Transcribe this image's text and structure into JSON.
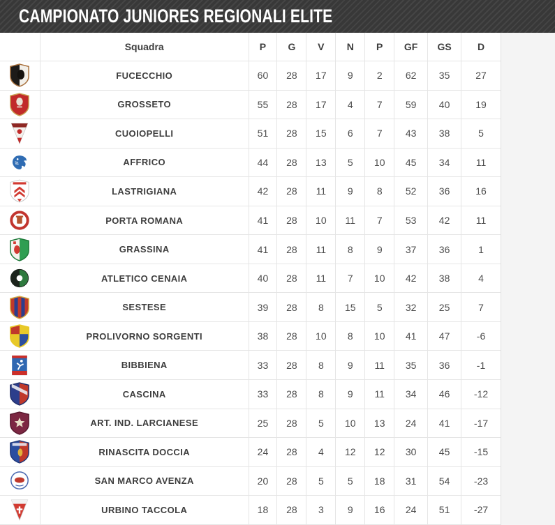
{
  "header": {
    "title": "CAMPIONATO JUNIORES REGIONALI ELITE"
  },
  "colors": {
    "title_bar_bg": "#3b3b3b",
    "title_text": "#ffffff",
    "page_bg": "#f4f4f4",
    "table_bg": "#ffffff",
    "row_border": "#e5e5e5",
    "header_text": "#3d3d3d",
    "cell_text": "#4c4c4c"
  },
  "standings": {
    "columns": [
      "",
      "Squadra",
      "P",
      "G",
      "V",
      "N",
      "P",
      "GF",
      "GS",
      "D"
    ],
    "column_names": [
      "logo",
      "team",
      "points",
      "played",
      "won",
      "drawn",
      "lost",
      "goals-for",
      "goals-against",
      "difference"
    ],
    "rows": [
      {
        "team": "FUCECCHIO",
        "stats": [
          60,
          28,
          17,
          9,
          2,
          62,
          35,
          27
        ],
        "logo": {
          "icon": "fucecchio-crest-icon",
          "shape": "shield-split",
          "colors": [
            "#1d1b19",
            "#f2efe9",
            "#a8703c"
          ],
          "detail": "lion"
        }
      },
      {
        "team": "GROSSETO",
        "stats": [
          55,
          28,
          17,
          4,
          7,
          59,
          40,
          19
        ],
        "logo": {
          "icon": "grosseto-crest-icon",
          "shape": "shield",
          "colors": [
            "#c12b2a",
            "#e9e3d4",
            "#caa353"
          ],
          "detail": "griffin"
        }
      },
      {
        "team": "CUOIOPELLI",
        "stats": [
          51,
          28,
          15,
          6,
          7,
          43,
          38,
          5
        ],
        "logo": {
          "icon": "cuoiopelli-crest-icon",
          "shape": "pennant",
          "colors": [
            "#8e2723",
            "#f4f0ec",
            "#c12b2a"
          ],
          "detail": "mark"
        }
      },
      {
        "team": "AFFRICO",
        "stats": [
          44,
          28,
          13,
          5,
          10,
          45,
          34,
          11
        ],
        "logo": {
          "icon": "affrico-crest-icon",
          "shape": "bird",
          "colors": [
            "#2f6cb3",
            "#ffffff",
            "#2f6cb3"
          ]
        }
      },
      {
        "team": "LASTRIGIANA",
        "stats": [
          42,
          28,
          11,
          9,
          8,
          52,
          36,
          16
        ],
        "logo": {
          "icon": "lastrigiana-crest-icon",
          "shape": "chevron-shield",
          "colors": [
            "#d23a31",
            "#ffffff",
            "#c9c9c9"
          ]
        }
      },
      {
        "team": "PORTA ROMANA",
        "stats": [
          41,
          28,
          10,
          11,
          7,
          53,
          42,
          11
        ],
        "logo": {
          "icon": "porta-romana-crest-icon",
          "shape": "ring",
          "colors": [
            "#c2342e",
            "#b5542f",
            "#ffffff"
          ],
          "detail": "tower"
        }
      },
      {
        "team": "GRASSINA",
        "stats": [
          41,
          28,
          11,
          8,
          9,
          37,
          36,
          1
        ],
        "logo": {
          "icon": "grassina-crest-icon",
          "shape": "shield-split",
          "colors": [
            "#f6f3ee",
            "#2f9e52",
            "#1f7a3a"
          ],
          "detail": "redlion"
        }
      },
      {
        "team": "ATLETICO CENAIA",
        "stats": [
          40,
          28,
          11,
          7,
          10,
          42,
          38,
          4
        ],
        "logo": {
          "icon": "atletico-cenaia-crest-icon",
          "shape": "circle-split",
          "colors": [
            "#1c241c",
            "#2e7a3e",
            "#ffffff"
          ]
        }
      },
      {
        "team": "SESTESE",
        "stats": [
          39,
          28,
          8,
          15,
          5,
          32,
          25,
          7
        ],
        "logo": {
          "icon": "sestese-crest-icon",
          "shape": "shield-stripes",
          "colors": [
            "#c0392b",
            "#2c3e8c",
            "#d4a73c"
          ]
        }
      },
      {
        "team": "PROLIVORNO SORGENTI",
        "stats": [
          38,
          28,
          10,
          8,
          10,
          41,
          47,
          -6
        ],
        "logo": {
          "icon": "prolivorno-crest-icon",
          "shape": "shield-quarters",
          "colors": [
            "#e8c928",
            "#c0392b",
            "#2c4f9e"
          ]
        }
      },
      {
        "team": "BIBBIENA",
        "stats": [
          33,
          28,
          8,
          9,
          11,
          35,
          36,
          -1
        ],
        "logo": {
          "icon": "bibbiena-crest-icon",
          "shape": "square-badge",
          "colors": [
            "#2f67b1",
            "#cc2f2a",
            "#ffffff"
          ]
        }
      },
      {
        "team": "CASCINA",
        "stats": [
          33,
          28,
          8,
          9,
          11,
          34,
          46,
          -12
        ],
        "logo": {
          "icon": "cascina-crest-icon",
          "shape": "shield-split",
          "colors": [
            "#2c3e8c",
            "#c0392b",
            "#22306b"
          ],
          "detail": "band"
        }
      },
      {
        "team": "ART. IND. LARCIANESE",
        "stats": [
          25,
          28,
          5,
          10,
          13,
          24,
          41,
          -17
        ],
        "logo": {
          "icon": "larcianese-crest-icon",
          "shape": "shield",
          "colors": [
            "#7c2742",
            "#e9e0c8",
            "#58182e"
          ],
          "detail": "star"
        }
      },
      {
        "team": "RINASCITA DOCCIA",
        "stats": [
          24,
          28,
          4,
          12,
          12,
          30,
          45,
          -15
        ],
        "logo": {
          "icon": "rinascita-doccia-crest-icon",
          "shape": "shield-split",
          "colors": [
            "#2b4ea0",
            "#c0392b",
            "#22397a"
          ],
          "detail": "figure"
        }
      },
      {
        "team": "SAN MARCO AVENZA",
        "stats": [
          20,
          28,
          5,
          5,
          18,
          31,
          54,
          -23
        ],
        "logo": {
          "icon": "san-marco-avenza-crest-icon",
          "shape": "ring",
          "colors": [
            "#4a69b0",
            "#c0392b",
            "#ffffff"
          ],
          "detail": "lion"
        }
      },
      {
        "team": "URBINO TACCOLA",
        "stats": [
          18,
          28,
          3,
          9,
          16,
          24,
          51,
          -27
        ],
        "logo": {
          "icon": "urbino-taccola-crest-icon",
          "shape": "pennant",
          "colors": [
            "#f2f2f2",
            "#d23a31",
            "#ffffff"
          ],
          "detail": "cross"
        }
      }
    ]
  }
}
